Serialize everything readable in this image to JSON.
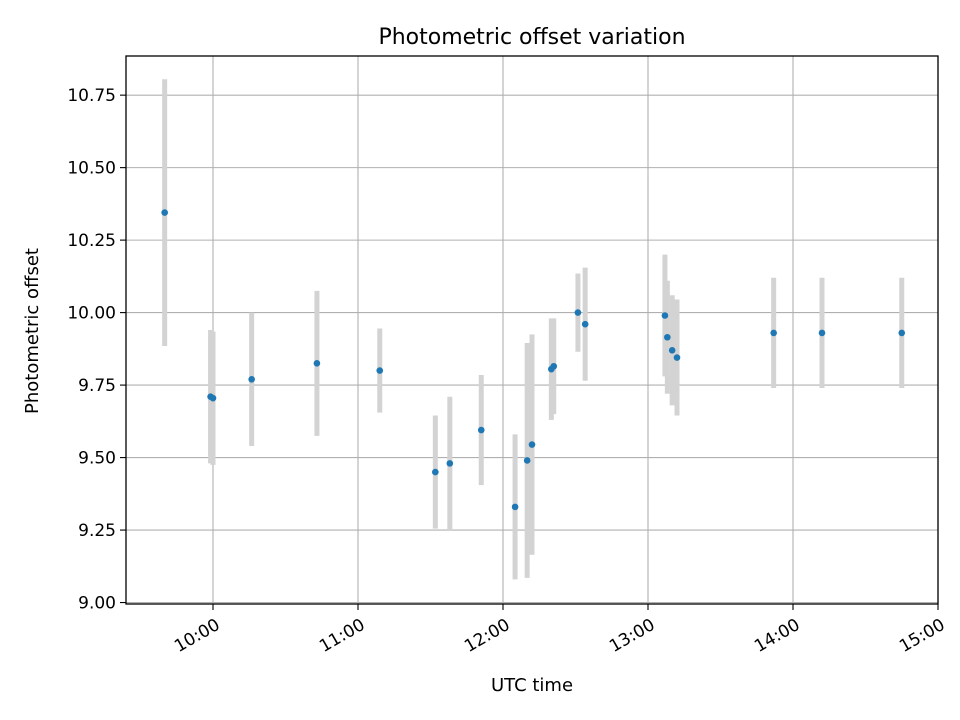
{
  "chart_data": {
    "type": "scatter",
    "title": "Photometric offset variation",
    "xlabel": "UTC time",
    "ylabel": "Photometric offset",
    "x_axis_type": "time",
    "xlim": [
      "09:24",
      "15:00"
    ],
    "ylim": [
      8.995,
      10.885
    ],
    "x_ticks": [
      "10:00",
      "11:00",
      "12:00",
      "13:00",
      "14:00",
      "15:00"
    ],
    "y_ticks": [
      "9.00",
      "9.25",
      "9.50",
      "9.75",
      "10.00",
      "10.25",
      "10.50",
      "10.75"
    ],
    "grid": true,
    "legend": "none",
    "marker_color": "#1f77b4",
    "errorbar_color": "#d3d3d3",
    "points": [
      {
        "x": "09:40",
        "y": 10.345,
        "err": 0.46
      },
      {
        "x": "09:59",
        "y": 9.71,
        "err": 0.23
      },
      {
        "x": "10:00",
        "y": 9.705,
        "err": 0.23
      },
      {
        "x": "10:16",
        "y": 9.77,
        "err": 0.23
      },
      {
        "x": "10:43",
        "y": 9.825,
        "err": 0.25
      },
      {
        "x": "11:09",
        "y": 9.8,
        "err": 0.145
      },
      {
        "x": "11:32",
        "y": 9.45,
        "err": 0.195
      },
      {
        "x": "11:38",
        "y": 9.48,
        "err": 0.23
      },
      {
        "x": "11:51",
        "y": 9.595,
        "err": 0.19
      },
      {
        "x": "12:05",
        "y": 9.33,
        "err": 0.25
      },
      {
        "x": "12:10",
        "y": 9.49,
        "err": 0.405
      },
      {
        "x": "12:12",
        "y": 9.545,
        "err": 0.38
      },
      {
        "x": "12:20",
        "y": 9.805,
        "err": 0.175
      },
      {
        "x": "12:21",
        "y": 9.815,
        "err": 0.165
      },
      {
        "x": "12:31",
        "y": 10.0,
        "err": 0.135
      },
      {
        "x": "12:34",
        "y": 9.96,
        "err": 0.195
      },
      {
        "x": "13:07",
        "y": 9.99,
        "err": 0.21
      },
      {
        "x": "13:08",
        "y": 9.915,
        "err": 0.195
      },
      {
        "x": "13:10",
        "y": 9.87,
        "err": 0.19
      },
      {
        "x": "13:12",
        "y": 9.845,
        "err": 0.2
      },
      {
        "x": "13:52",
        "y": 9.93,
        "err": 0.19
      },
      {
        "x": "14:12",
        "y": 9.93,
        "err": 0.19
      },
      {
        "x": "14:45",
        "y": 9.93,
        "err": 0.19
      }
    ]
  }
}
